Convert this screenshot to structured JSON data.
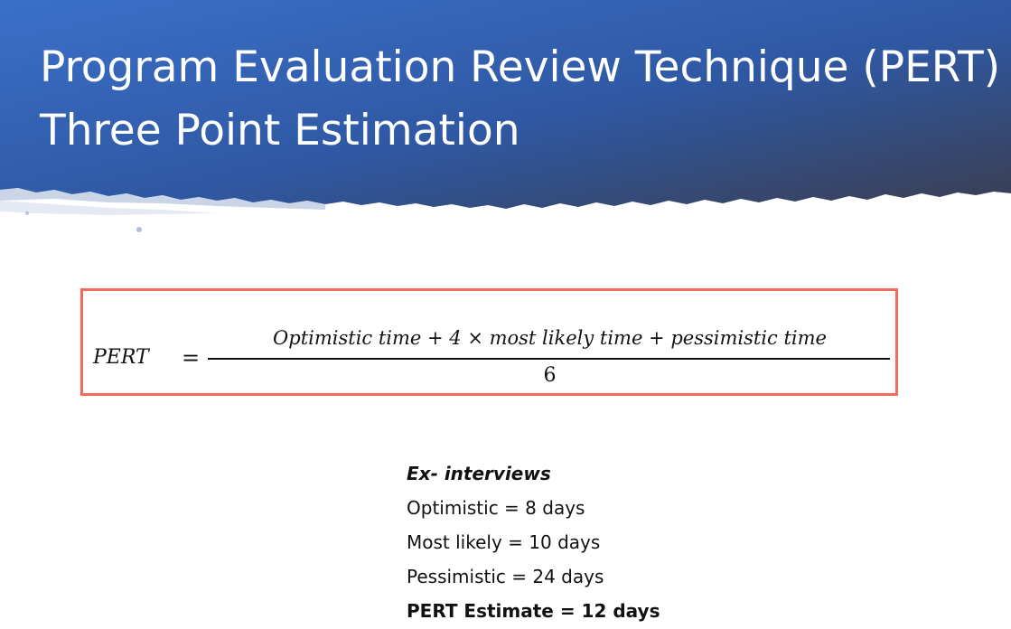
{
  "slide": {
    "title_line1": "Program Evaluation Review Technique (PERT)",
    "title_line2": "Three Point Estimation",
    "header_colors": [
      "#3a6fc6",
      "#2f5aa6",
      "#3a3f52"
    ]
  },
  "formula": {
    "lhs": "PERT",
    "equals": "=",
    "numerator": "Optimistic time  + 4 × most likely time  + pessimistic time",
    "denominator": "6",
    "border_color": "#f26b5e"
  },
  "example": {
    "heading": "Ex- interviews",
    "lines": [
      "Optimistic = 8 days",
      "Most likely = 10 days",
      "Pessimistic = 24 days"
    ],
    "result": "PERT Estimate = 12 days"
  }
}
